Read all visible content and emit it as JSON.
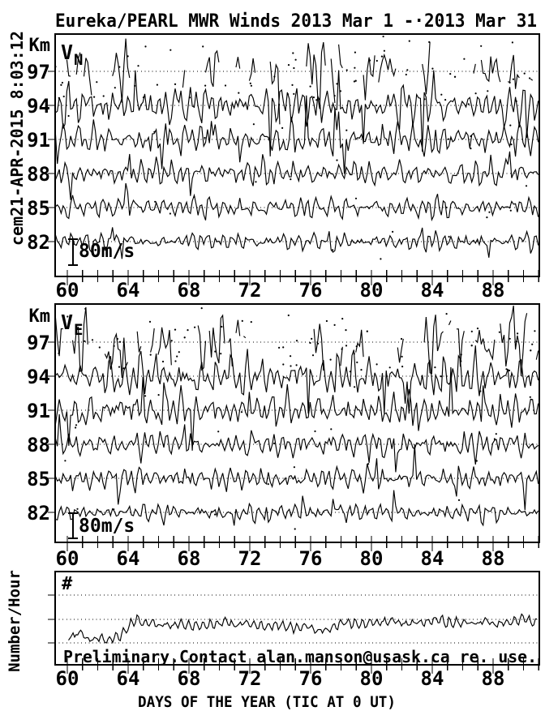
{
  "stamp": "cem21-APR-2015  8:03:12",
  "title": "Eureka/PEARL MWR Winds 2013 Mar  1 -·2013 Mar 31",
  "colors": {
    "ink": "#000000",
    "background": "#ffffff"
  },
  "xaxis": {
    "label": "DAYS OF THE YEAR (TIC AT 0 UT)",
    "major_tick_labels": [
      60,
      64,
      68,
      72,
      76,
      80,
      84,
      88
    ],
    "minor_step_days": 1,
    "range_days": [
      59.2,
      91.0
    ]
  },
  "wind_panels": [
    {
      "name": "V_N northward wind",
      "var_letter": "V",
      "var_sub": "N",
      "unit_label": "Km",
      "altitudes_km": [
        97,
        94,
        91,
        88,
        85,
        82
      ],
      "scale_bar_label": "80m/s",
      "scale_bar_m_s": 80
    },
    {
      "name": "V_E eastward wind",
      "var_letter": "V",
      "var_sub": "E",
      "unit_label": "Km",
      "altitudes_km": [
        97,
        94,
        91,
        88,
        85,
        82
      ],
      "scale_bar_label": "80m/s",
      "scale_bar_m_s": 80
    }
  ],
  "count_panel": {
    "ylabel": "Number/Hour",
    "hash_label": "#",
    "annotation": "Preliminary.Contact alan.manson@usask.ca re. use."
  },
  "chart_data": [
    {
      "type": "line",
      "panel": "V_N",
      "x_label": "day of year 2013",
      "x_range": [
        60,
        91
      ],
      "y_rows_km": [
        97,
        94,
        91,
        88,
        85,
        82
      ],
      "reference_scale_m_s": 80,
      "series": [
        {
          "altitude_km": 97,
          "sparse": true,
          "amplitude_m_s": 66,
          "seed": 101
        },
        {
          "altitude_km": 94,
          "sparse": false,
          "amplitude_m_s": 52,
          "seed": 102
        },
        {
          "altitude_km": 91,
          "sparse": false,
          "amplitude_m_s": 40,
          "seed": 103
        },
        {
          "altitude_km": 88,
          "sparse": false,
          "amplitude_m_s": 33,
          "seed": 104
        },
        {
          "altitude_km": 85,
          "sparse": false,
          "amplitude_m_s": 28,
          "seed": 105
        },
        {
          "altitude_km": 82,
          "sparse": false,
          "amplitude_m_s": 23,
          "seed": 106
        }
      ],
      "scatter_seed": 107
    },
    {
      "type": "line",
      "panel": "V_E",
      "x_label": "day of year 2013",
      "x_range": [
        60,
        91
      ],
      "y_rows_km": [
        97,
        94,
        91,
        88,
        85,
        82
      ],
      "reference_scale_m_s": 80,
      "series": [
        {
          "altitude_km": 97,
          "sparse": true,
          "amplitude_m_s": 70,
          "seed": 201
        },
        {
          "altitude_km": 94,
          "sparse": false,
          "amplitude_m_s": 55,
          "seed": 202
        },
        {
          "altitude_km": 91,
          "sparse": false,
          "amplitude_m_s": 43,
          "seed": 203
        },
        {
          "altitude_km": 88,
          "sparse": false,
          "amplitude_m_s": 35,
          "seed": 204
        },
        {
          "altitude_km": 85,
          "sparse": false,
          "amplitude_m_s": 30,
          "seed": 205
        },
        {
          "altitude_km": 82,
          "sparse": false,
          "amplitude_m_s": 24,
          "seed": 206
        }
      ],
      "scatter_seed": 207
    },
    {
      "type": "line",
      "panel": "Number/Hour",
      "x_range": [
        60,
        91
      ],
      "units": "fraction of dotted-gridline spacing above bottom gridline",
      "gridline_count": 3,
      "oscillation_amplitude": 0.2,
      "noise": 0.16,
      "seed": 301,
      "anchors": [
        [
          60,
          0.12
        ],
        [
          60.9,
          0.5
        ],
        [
          61.4,
          0.12
        ],
        [
          62,
          0.22
        ],
        [
          62.6,
          0.1
        ],
        [
          63,
          0.2
        ],
        [
          63.6,
          0.32
        ],
        [
          64,
          0.7
        ],
        [
          64.6,
          1.05
        ],
        [
          65,
          0.78
        ],
        [
          65.6,
          0.92
        ],
        [
          66,
          0.68
        ],
        [
          66.5,
          0.8
        ],
        [
          67,
          0.72
        ],
        [
          67.5,
          0.85
        ],
        [
          68,
          0.7
        ],
        [
          69,
          0.75
        ],
        [
          70,
          0.82
        ],
        [
          70.5,
          0.9
        ],
        [
          71,
          0.72
        ],
        [
          72,
          0.82
        ],
        [
          73,
          0.68
        ],
        [
          74,
          0.78
        ],
        [
          75,
          0.6
        ],
        [
          75.5,
          0.72
        ],
        [
          76,
          0.6
        ],
        [
          76.5,
          0.5
        ],
        [
          77,
          0.55
        ],
        [
          77.5,
          0.65
        ],
        [
          78,
          0.8
        ],
        [
          79,
          0.85
        ],
        [
          80,
          0.82
        ],
        [
          81,
          0.9
        ],
        [
          81.5,
          1.0
        ],
        [
          82,
          0.8
        ],
        [
          83,
          0.85
        ],
        [
          84,
          0.9
        ],
        [
          84.5,
          1.02
        ],
        [
          85,
          0.82
        ],
        [
          86,
          0.86
        ],
        [
          87,
          0.8
        ],
        [
          87.5,
          0.95
        ],
        [
          88,
          0.78
        ],
        [
          89,
          0.86
        ],
        [
          90,
          1.0
        ],
        [
          90.5,
          0.9
        ],
        [
          91,
          0.85
        ]
      ]
    }
  ]
}
